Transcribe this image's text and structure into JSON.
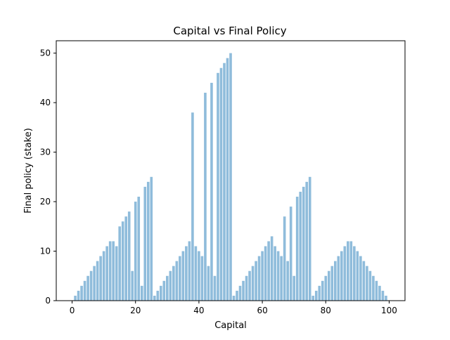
{
  "chart_data": {
    "type": "bar",
    "title": "Capital vs Final Policy",
    "xlabel": "Capital",
    "ylabel": "Final policy (stake)",
    "xlim": [
      -5,
      105
    ],
    "ylim": [
      0,
      52.5
    ],
    "xticks": [
      0,
      20,
      40,
      60,
      80,
      100
    ],
    "yticks": [
      0,
      10,
      20,
      30,
      40,
      50
    ],
    "grid": false,
    "bar_color": "#8fbcdb",
    "x": [
      0,
      1,
      2,
      3,
      4,
      5,
      6,
      7,
      8,
      9,
      10,
      11,
      12,
      13,
      14,
      15,
      16,
      17,
      18,
      19,
      20,
      21,
      22,
      23,
      24,
      25,
      26,
      27,
      28,
      29,
      30,
      31,
      32,
      33,
      34,
      35,
      36,
      37,
      38,
      39,
      40,
      41,
      42,
      43,
      44,
      45,
      46,
      47,
      48,
      49,
      50,
      51,
      52,
      53,
      54,
      55,
      56,
      57,
      58,
      59,
      60,
      61,
      62,
      63,
      64,
      65,
      66,
      67,
      68,
      69,
      70,
      71,
      72,
      73,
      74,
      75,
      76,
      77,
      78,
      79,
      80,
      81,
      82,
      83,
      84,
      85,
      86,
      87,
      88,
      89,
      90,
      91,
      92,
      93,
      94,
      95,
      96,
      97,
      98,
      99,
      100
    ],
    "values": [
      0,
      1,
      2,
      3,
      4,
      5,
      6,
      7,
      8,
      9,
      10,
      11,
      12,
      12,
      11,
      15,
      16,
      17,
      18,
      6,
      20,
      21,
      3,
      23,
      24,
      25,
      1,
      2,
      3,
      4,
      5,
      6,
      7,
      8,
      9,
      10,
      11,
      12,
      38,
      11,
      10,
      9,
      42,
      7,
      44,
      5,
      46,
      47,
      48,
      49,
      50,
      1,
      2,
      3,
      4,
      5,
      6,
      7,
      8,
      9,
      10,
      11,
      12,
      13,
      11,
      10,
      9,
      17,
      8,
      19,
      5,
      21,
      22,
      23,
      24,
      25,
      1,
      2,
      3,
      4,
      5,
      6,
      7,
      8,
      9,
      10,
      11,
      12,
      12,
      11,
      10,
      9,
      8,
      7,
      6,
      5,
      4,
      3,
      2,
      1,
      0
    ]
  }
}
